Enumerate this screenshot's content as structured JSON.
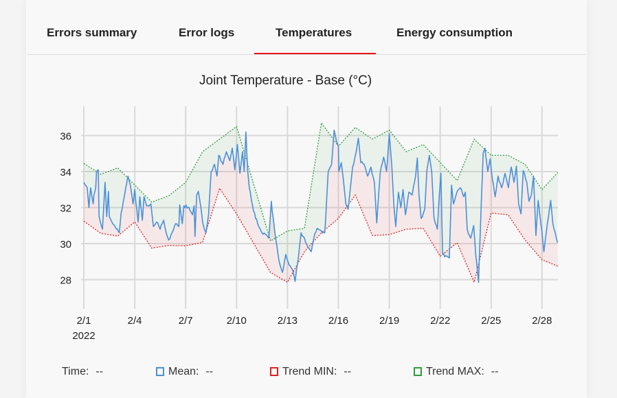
{
  "tabs": [
    {
      "label": "Errors summary",
      "active": false
    },
    {
      "label": "Error logs",
      "active": false
    },
    {
      "label": "Temperatures",
      "active": true
    },
    {
      "label": "Energy consumption",
      "active": false
    }
  ],
  "colors": {
    "accent": "#e8141c",
    "mean": "#4a90d9",
    "min": "#e02020",
    "max": "#2e9e3e"
  },
  "legend": {
    "time_label": "Time:",
    "time_value": "--",
    "mean_label": "Mean:",
    "mean_value": "--",
    "min_label": "Trend MIN:",
    "min_value": "--",
    "max_label": "Trend MAX:",
    "max_value": "--"
  },
  "chart_data": {
    "type": "line",
    "title": "Joint Temperature - Base (°C)",
    "xlabel": "",
    "ylabel": "",
    "x_unit": "days since 2/1/2022",
    "xlim": [
      0,
      27.93
    ],
    "ylim": [
      26.4,
      37.6
    ],
    "grid": true,
    "x_ticks": [
      {
        "day": 0,
        "label": "2/1",
        "sub": "2022"
      },
      {
        "day": 3,
        "label": "2/4"
      },
      {
        "day": 6,
        "label": "2/7"
      },
      {
        "day": 9,
        "label": "2/10"
      },
      {
        "day": 12,
        "label": "2/13"
      },
      {
        "day": 15,
        "label": "2/16"
      },
      {
        "day": 18,
        "label": "2/19"
      },
      {
        "day": 21,
        "label": "2/22"
      },
      {
        "day": 24,
        "label": "2/25"
      },
      {
        "day": 27,
        "label": "2/28"
      }
    ],
    "y_ticks": [
      28,
      30,
      32,
      34,
      36
    ],
    "series": [
      {
        "name": "Trend MAX",
        "style": "dotted",
        "x": [
          0,
          1,
          2,
          4,
          5,
          6,
          7,
          8,
          9,
          11,
          12,
          13,
          14,
          15,
          16,
          17,
          18,
          19,
          20,
          21,
          22,
          23,
          24,
          25,
          26,
          27,
          27.93
        ],
        "values": [
          34.45,
          33.85,
          34.2,
          32.3,
          32.65,
          33.4,
          35.1,
          35.8,
          36.5,
          30.15,
          30.7,
          30.85,
          36.7,
          35.4,
          36.45,
          35.8,
          36.3,
          35.1,
          35.5,
          34.5,
          33.5,
          35.8,
          34.9,
          34.9,
          34.4,
          33.0,
          33.95
        ]
      },
      {
        "name": "Trend MIN",
        "style": "dotted",
        "x": [
          0,
          1,
          2,
          3,
          4,
          5,
          6,
          7,
          8,
          9,
          11,
          12,
          13,
          14,
          15,
          16,
          17,
          18,
          19,
          20,
          21,
          22,
          23,
          24,
          25,
          26,
          27,
          27.93
        ],
        "values": [
          31.25,
          30.57,
          30.42,
          31.2,
          29.75,
          29.9,
          29.88,
          30.07,
          33.07,
          31.65,
          28.4,
          27.85,
          29.55,
          30.6,
          31.4,
          32.7,
          30.45,
          30.5,
          30.8,
          30.85,
          29.3,
          30.05,
          27.85,
          31.7,
          31.6,
          30.2,
          29.1,
          28.75
        ]
      },
      {
        "name": "Mean",
        "style": "solid",
        "x": [
          0,
          0.2,
          0.3,
          0.4,
          0.55,
          0.6,
          0.7,
          0.75,
          0.85,
          0.9,
          1.0,
          1.1,
          1.25,
          1.35,
          1.45,
          1.5,
          1.65,
          2.09,
          2.2,
          2.4,
          2.6,
          2.75,
          2.9,
          3.0,
          3.2,
          3.3,
          3.45,
          3.55,
          3.7,
          3.85,
          3.95,
          4.1,
          4.3,
          4.5,
          4.7,
          4.85,
          5.0,
          5.2,
          5.4,
          5.6,
          5.65,
          5.8,
          5.9,
          6.2,
          6.4,
          6.5,
          6.55,
          6.65,
          6.75,
          6.9,
          7.0,
          7.1,
          7.2,
          7.35,
          7.5,
          7.7,
          7.85,
          7.95,
          8.2,
          8.4,
          8.6,
          8.75,
          8.9,
          9.05,
          9.2,
          9.35,
          9.45,
          9.55,
          9.65,
          9.75,
          10.0,
          10.3,
          10.5,
          10.75,
          10.9,
          11.05,
          11.1,
          11.3,
          11.5,
          11.7,
          11.9,
          12.1,
          12.3,
          12.45,
          12.65,
          12.8,
          13.0,
          13.2,
          13.4,
          13.55,
          13.75,
          14.0,
          14.2,
          14.4,
          14.6,
          14.75,
          14.9,
          15.0,
          15.03,
          15.17,
          15.3,
          15.44,
          15.57,
          15.71,
          15.84,
          16.05,
          16.18,
          16.32,
          16.52,
          16.72,
          16.92,
          17.12,
          17.26,
          17.46,
          17.67,
          17.84,
          18.0,
          18.14,
          18.27,
          18.38,
          18.54,
          18.68,
          18.81,
          18.95,
          19.15,
          19.35,
          19.55,
          19.65,
          19.75,
          19.88,
          20.09,
          20.22,
          20.36,
          20.5,
          20.63,
          20.83,
          20.94,
          21.04,
          21.14,
          21.37,
          21.54,
          21.67,
          21.78,
          21.98,
          22.18,
          22.39,
          22.48,
          22.59,
          22.79,
          22.97,
          23.1,
          23.26,
          23.43,
          23.53,
          23.64,
          23.8,
          23.94,
          24.07,
          24.24,
          24.41,
          24.62,
          24.82,
          25.02,
          25.18,
          25.35,
          25.49,
          25.62,
          25.76,
          25.89,
          26.1,
          26.23,
          26.37,
          26.5,
          26.64,
          26.77,
          26.93,
          27.11,
          27.31,
          27.51,
          27.64,
          27.91
        ],
        "values": [
          33.4,
          33.1,
          32.0,
          33.1,
          32.2,
          32.7,
          33.1,
          34.0,
          34.1,
          31.5,
          31.1,
          30.8,
          33.4,
          31.5,
          32.9,
          31.5,
          31.2,
          30.6,
          31.7,
          32.7,
          33.75,
          33.2,
          32.2,
          33.0,
          31.2,
          32.6,
          31.3,
          32.6,
          32.1,
          32.1,
          32.2,
          30.95,
          31.2,
          30.8,
          31.3,
          30.6,
          30.2,
          30.6,
          31.1,
          30.95,
          32.15,
          31.1,
          32.1,
          32.0,
          31.6,
          32.1,
          30.4,
          32.7,
          32.9,
          32.0,
          31.2,
          30.8,
          30.6,
          31.6,
          34.0,
          34.4,
          33.75,
          34.9,
          34.4,
          35.1,
          34.6,
          35.3,
          34.1,
          35.5,
          33.9,
          35.1,
          34.0,
          36.2,
          34.1,
          33.1,
          31.8,
          30.95,
          30.6,
          30.5,
          30.3,
          32.35,
          31.8,
          30.3,
          29.05,
          28.4,
          29.4,
          28.8,
          28.55,
          27.9,
          29.3,
          30.6,
          30.3,
          29.8,
          29.55,
          30.3,
          30.85,
          30.7,
          30.6,
          34.0,
          34.4,
          36.3,
          35.65,
          35.4,
          34.0,
          34.5,
          33.5,
          32.2,
          31.9,
          33.1,
          34.25,
          35.1,
          35.85,
          34.5,
          34.4,
          33.75,
          34.25,
          33.4,
          31.15,
          33.9,
          34.8,
          34.0,
          36.1,
          34.4,
          32.1,
          30.95,
          32.85,
          32.0,
          33.0,
          31.6,
          32.85,
          32.7,
          33.75,
          34.75,
          32.7,
          31.4,
          31.9,
          34.1,
          34.9,
          34.0,
          31.45,
          30.8,
          32.6,
          33.9,
          29.4,
          29.3,
          29.2,
          33.25,
          32.2,
          32.85,
          33.1,
          32.6,
          32.85,
          30.8,
          30.3,
          31.0,
          29.3,
          27.85,
          32.5,
          35.0,
          35.3,
          34.0,
          34.7,
          33.6,
          32.6,
          33.75,
          33.1,
          33.9,
          33.1,
          34.25,
          33.4,
          34.3,
          32.2,
          31.65,
          34.05,
          33.4,
          32.35,
          32.7,
          33.75,
          30.45,
          32.4,
          31.1,
          29.55,
          31.1,
          32.4,
          31.1,
          30.05
        ]
      }
    ]
  }
}
